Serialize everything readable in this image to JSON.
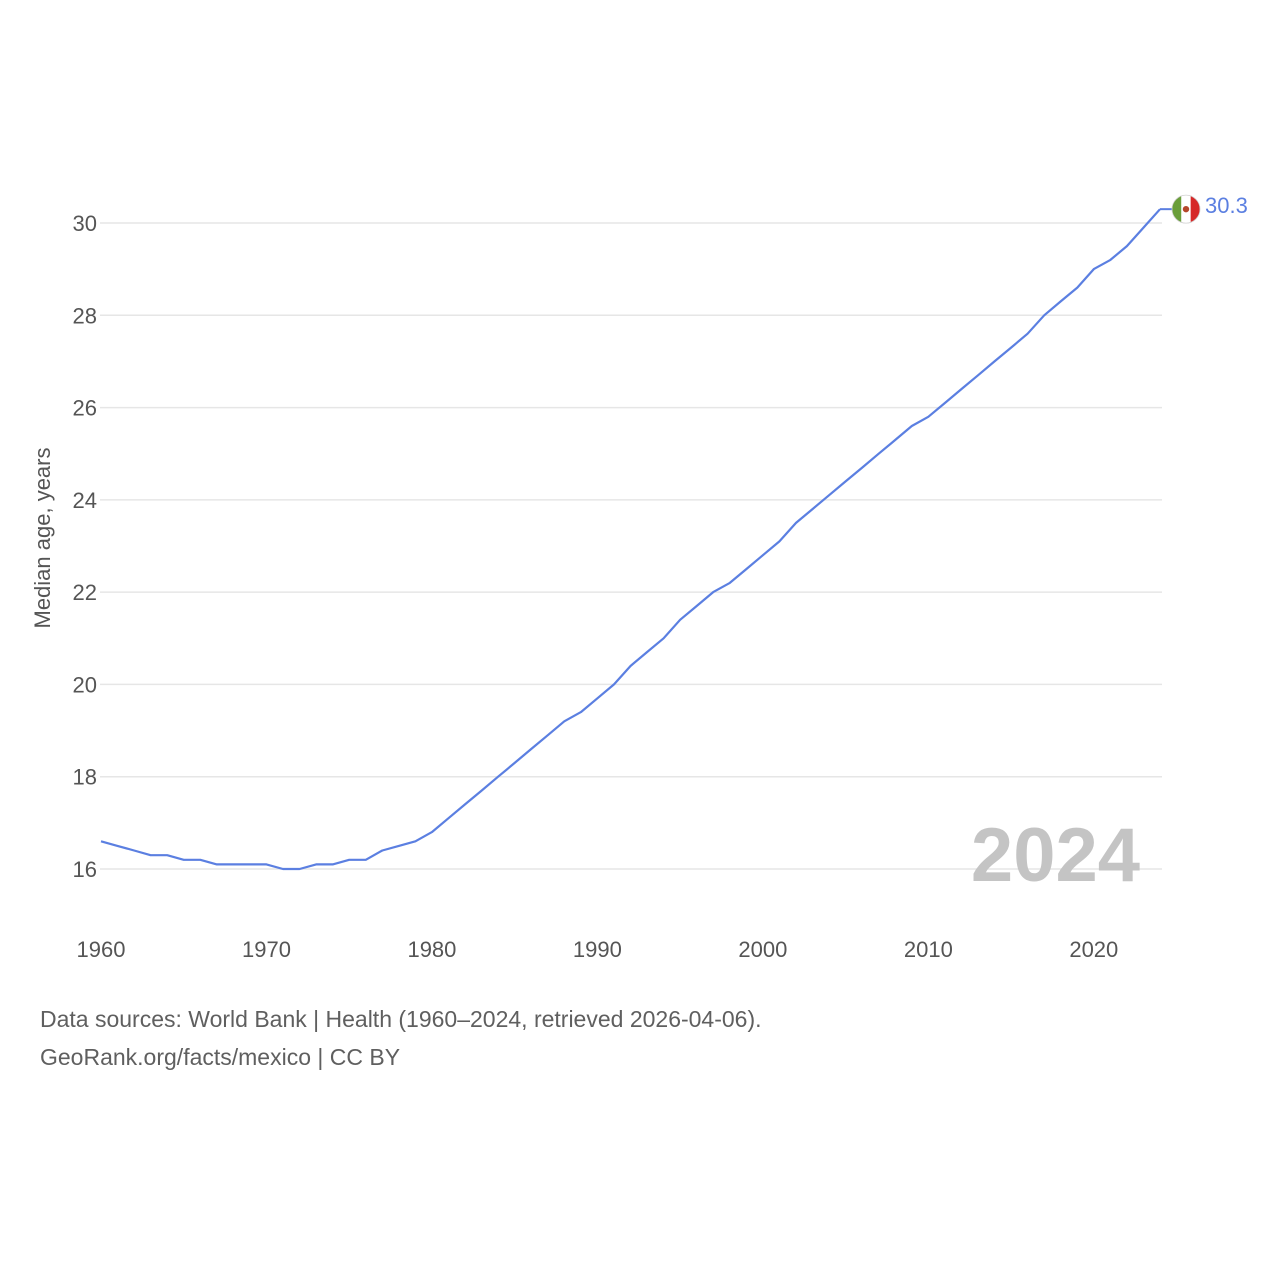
{
  "chart_data": {
    "type": "line",
    "title": "",
    "xlabel": "",
    "ylabel": "Median age, years",
    "xlim": [
      1960,
      2024
    ],
    "ylim": [
      15,
      31
    ],
    "x_ticks": [
      1960,
      1970,
      1980,
      1990,
      2000,
      2010,
      2020
    ],
    "y_ticks": [
      16,
      18,
      20,
      22,
      24,
      26,
      28,
      30
    ],
    "grid": "horizontal",
    "series": [
      {
        "name": "Mexico",
        "color": "#5b7fe1",
        "x": [
          1960,
          1961,
          1962,
          1963,
          1964,
          1965,
          1966,
          1967,
          1968,
          1969,
          1970,
          1971,
          1972,
          1973,
          1974,
          1975,
          1976,
          1977,
          1978,
          1979,
          1980,
          1981,
          1982,
          1983,
          1984,
          1985,
          1986,
          1987,
          1988,
          1989,
          1990,
          1991,
          1992,
          1993,
          1994,
          1995,
          1996,
          1997,
          1998,
          1999,
          2000,
          2001,
          2002,
          2003,
          2004,
          2005,
          2006,
          2007,
          2008,
          2009,
          2010,
          2011,
          2012,
          2013,
          2014,
          2015,
          2016,
          2017,
          2018,
          2019,
          2020,
          2021,
          2022,
          2023,
          2024
        ],
        "values": [
          16.6,
          16.5,
          16.4,
          16.3,
          16.3,
          16.2,
          16.2,
          16.1,
          16.1,
          16.1,
          16.1,
          16.0,
          16.0,
          16.1,
          16.1,
          16.2,
          16.2,
          16.4,
          16.5,
          16.6,
          16.8,
          17.1,
          17.4,
          17.7,
          18.0,
          18.3,
          18.6,
          18.9,
          19.2,
          19.4,
          19.7,
          20.0,
          20.4,
          20.7,
          21.0,
          21.4,
          21.7,
          22.0,
          22.2,
          22.5,
          22.8,
          23.1,
          23.5,
          23.8,
          24.1,
          24.4,
          24.7,
          25.0,
          25.3,
          25.6,
          25.8,
          26.1,
          26.4,
          26.7,
          27.0,
          27.3,
          27.6,
          28.0,
          28.3,
          28.6,
          29.0,
          29.2,
          29.5,
          29.9,
          30.3
        ]
      }
    ],
    "end_label": "30.3",
    "current_year": "2024"
  },
  "flag": {
    "name": "mexico-flag-icon",
    "left_color": "#6a9e3a",
    "mid_color": "#ffffff",
    "right_color": "#d62828"
  },
  "footer": {
    "line1": "Data sources: World Bank | Health (1960–2024, retrieved 2026-04-06).",
    "line2": "GeoRank.org/facts/mexico | CC BY"
  }
}
